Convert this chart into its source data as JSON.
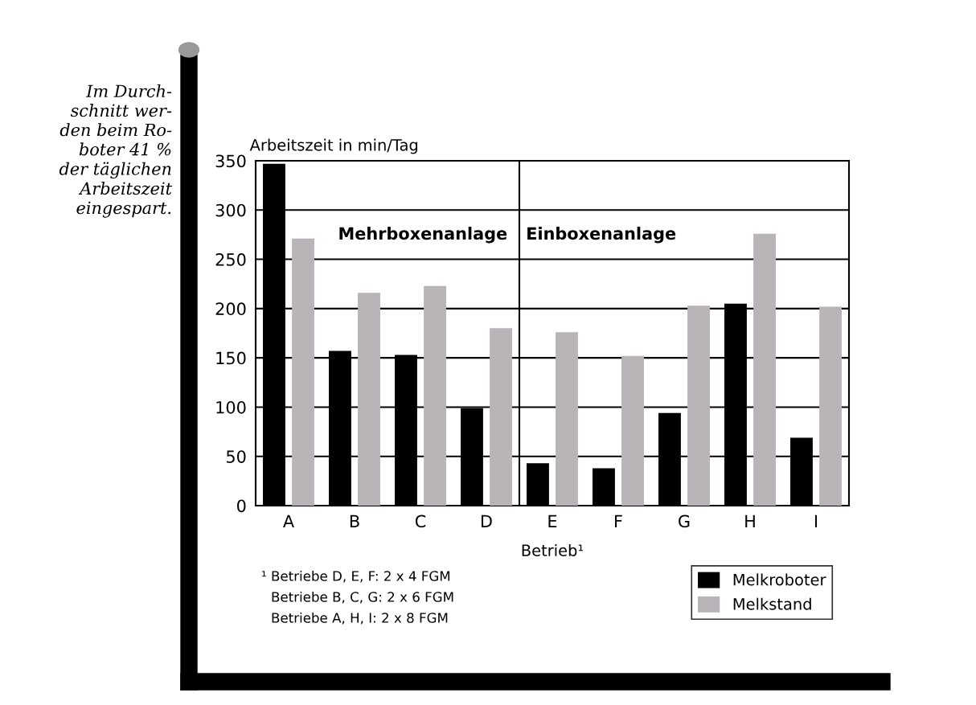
{
  "chart_data": {
    "type": "bar",
    "categories": [
      "A",
      "B",
      "C",
      "D",
      "E",
      "F",
      "G",
      "H",
      "I"
    ],
    "series": [
      {
        "name": "Melkroboter",
        "color": "#000000",
        "values": [
          347,
          157,
          153,
          99,
          43,
          38,
          94,
          205,
          69
        ]
      },
      {
        "name": "Melkstand",
        "color": "#b8b4b8",
        "values": [
          271,
          216,
          223,
          180,
          176,
          152,
          203,
          276,
          202
        ]
      }
    ],
    "xlabel": "Betrieb¹",
    "ylabel": "Arbeitszeit in min/Tag",
    "ylim": [
      0,
      350
    ],
    "yticks": [
      0,
      50,
      100,
      150,
      200,
      250,
      300,
      350
    ],
    "grid": "y",
    "legend": "bottom right",
    "annotations": [
      "Im Durch-\nschnitt wer-\nden beim Ro-\nboter 41 %\nder täglichen\nArbeitszeit\neingespart.",
      "¹ Betriebe D, E, F: 2 x 4 FGM",
      "Betriebe B, C, G: 2 x 6 FGM",
      "Betriebe A, H, I: 2 x 8 FGM",
      "Mehrboxenanlage",
      "Einboxenanlage"
    ]
  }
}
